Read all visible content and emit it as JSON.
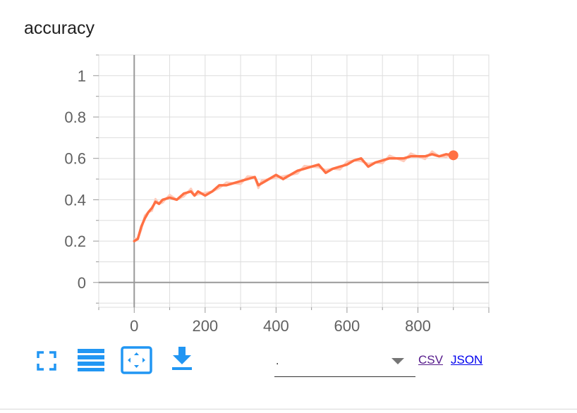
{
  "card": {
    "title": "accuracy"
  },
  "toolbar": {
    "expand_icon": "fullscreen-icon",
    "data_icon": "list-icon",
    "fit_icon": "fit-domain-icon",
    "download_icon": "download-icon",
    "run_select_value": ".",
    "csv_label": "CSV",
    "json_label": "JSON"
  },
  "colors": {
    "series": "#ff7043",
    "series_raw": "#ffccbc",
    "grid": "#dddddd",
    "axis": "#999999",
    "icon": "#2196f3"
  },
  "chart_data": {
    "type": "line",
    "title": "accuracy",
    "xlabel": "",
    "ylabel": "",
    "xlim": [
      -100,
      1000
    ],
    "ylim": [
      -0.12,
      1.1
    ],
    "x_ticks": [
      0,
      200,
      400,
      600,
      800
    ],
    "y_ticks": [
      0,
      0.2,
      0.4,
      0.6,
      0.8,
      1
    ],
    "x_tick_labels": [
      "0",
      "200",
      "400",
      "600",
      "800"
    ],
    "y_tick_labels": [
      "0",
      "0.2",
      "0.4",
      "0.6",
      "0.8",
      "1"
    ],
    "grid": true,
    "series": [
      {
        "smoothed": true,
        "x": [
          0,
          10,
          20,
          30,
          40,
          50,
          60,
          70,
          80,
          100,
          120,
          140,
          160,
          170,
          180,
          200,
          220,
          240,
          260,
          280,
          300,
          320,
          340,
          350,
          360,
          380,
          400,
          420,
          440,
          460,
          480,
          500,
          520,
          540,
          560,
          580,
          600,
          620,
          640,
          660,
          680,
          700,
          720,
          740,
          760,
          780,
          800,
          820,
          840,
          860,
          880,
          900
        ],
        "y": [
          0.2,
          0.21,
          0.27,
          0.31,
          0.34,
          0.36,
          0.39,
          0.38,
          0.4,
          0.41,
          0.4,
          0.43,
          0.44,
          0.42,
          0.44,
          0.42,
          0.44,
          0.47,
          0.47,
          0.48,
          0.49,
          0.5,
          0.51,
          0.47,
          0.48,
          0.5,
          0.52,
          0.5,
          0.52,
          0.54,
          0.55,
          0.56,
          0.57,
          0.53,
          0.55,
          0.56,
          0.57,
          0.59,
          0.6,
          0.56,
          0.58,
          0.59,
          0.6,
          0.6,
          0.6,
          0.61,
          0.61,
          0.61,
          0.62,
          0.61,
          0.62,
          0.615
        ]
      }
    ]
  }
}
